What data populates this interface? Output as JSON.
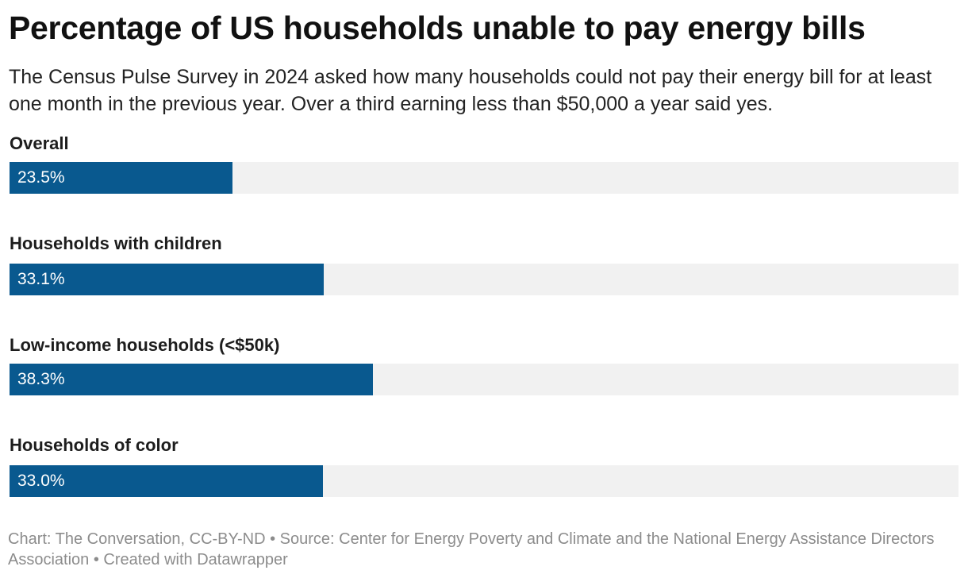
{
  "header": {
    "title": "Percentage of US households unable to pay energy bills",
    "subtitle": "The Census Pulse Survey in 2024 asked how many households could not pay their energy bill for at least one month in the previous year. Over a third earning less than $50,000 a year said yes."
  },
  "footer": {
    "text": "Chart: The Conversation, CC-BY-ND • Source: Center for Energy Poverty and Climate and the National Energy Assistance Directors Association • Created with Datawrapper"
  },
  "colors": {
    "bar": "#09598f",
    "track": "#f1f1f1"
  },
  "chart_data": {
    "type": "bar",
    "orientation": "horizontal",
    "categories": [
      "Overall",
      "Households with children",
      "Low-income households (<$50k)",
      "Households of color"
    ],
    "values": [
      23.5,
      33.1,
      38.3,
      33.0
    ],
    "value_labels": [
      "23.5%",
      "33.1%",
      "38.3%",
      "33.0%"
    ],
    "unit": "%",
    "xlim": [
      0,
      100
    ],
    "grid": false,
    "legend": "none"
  }
}
